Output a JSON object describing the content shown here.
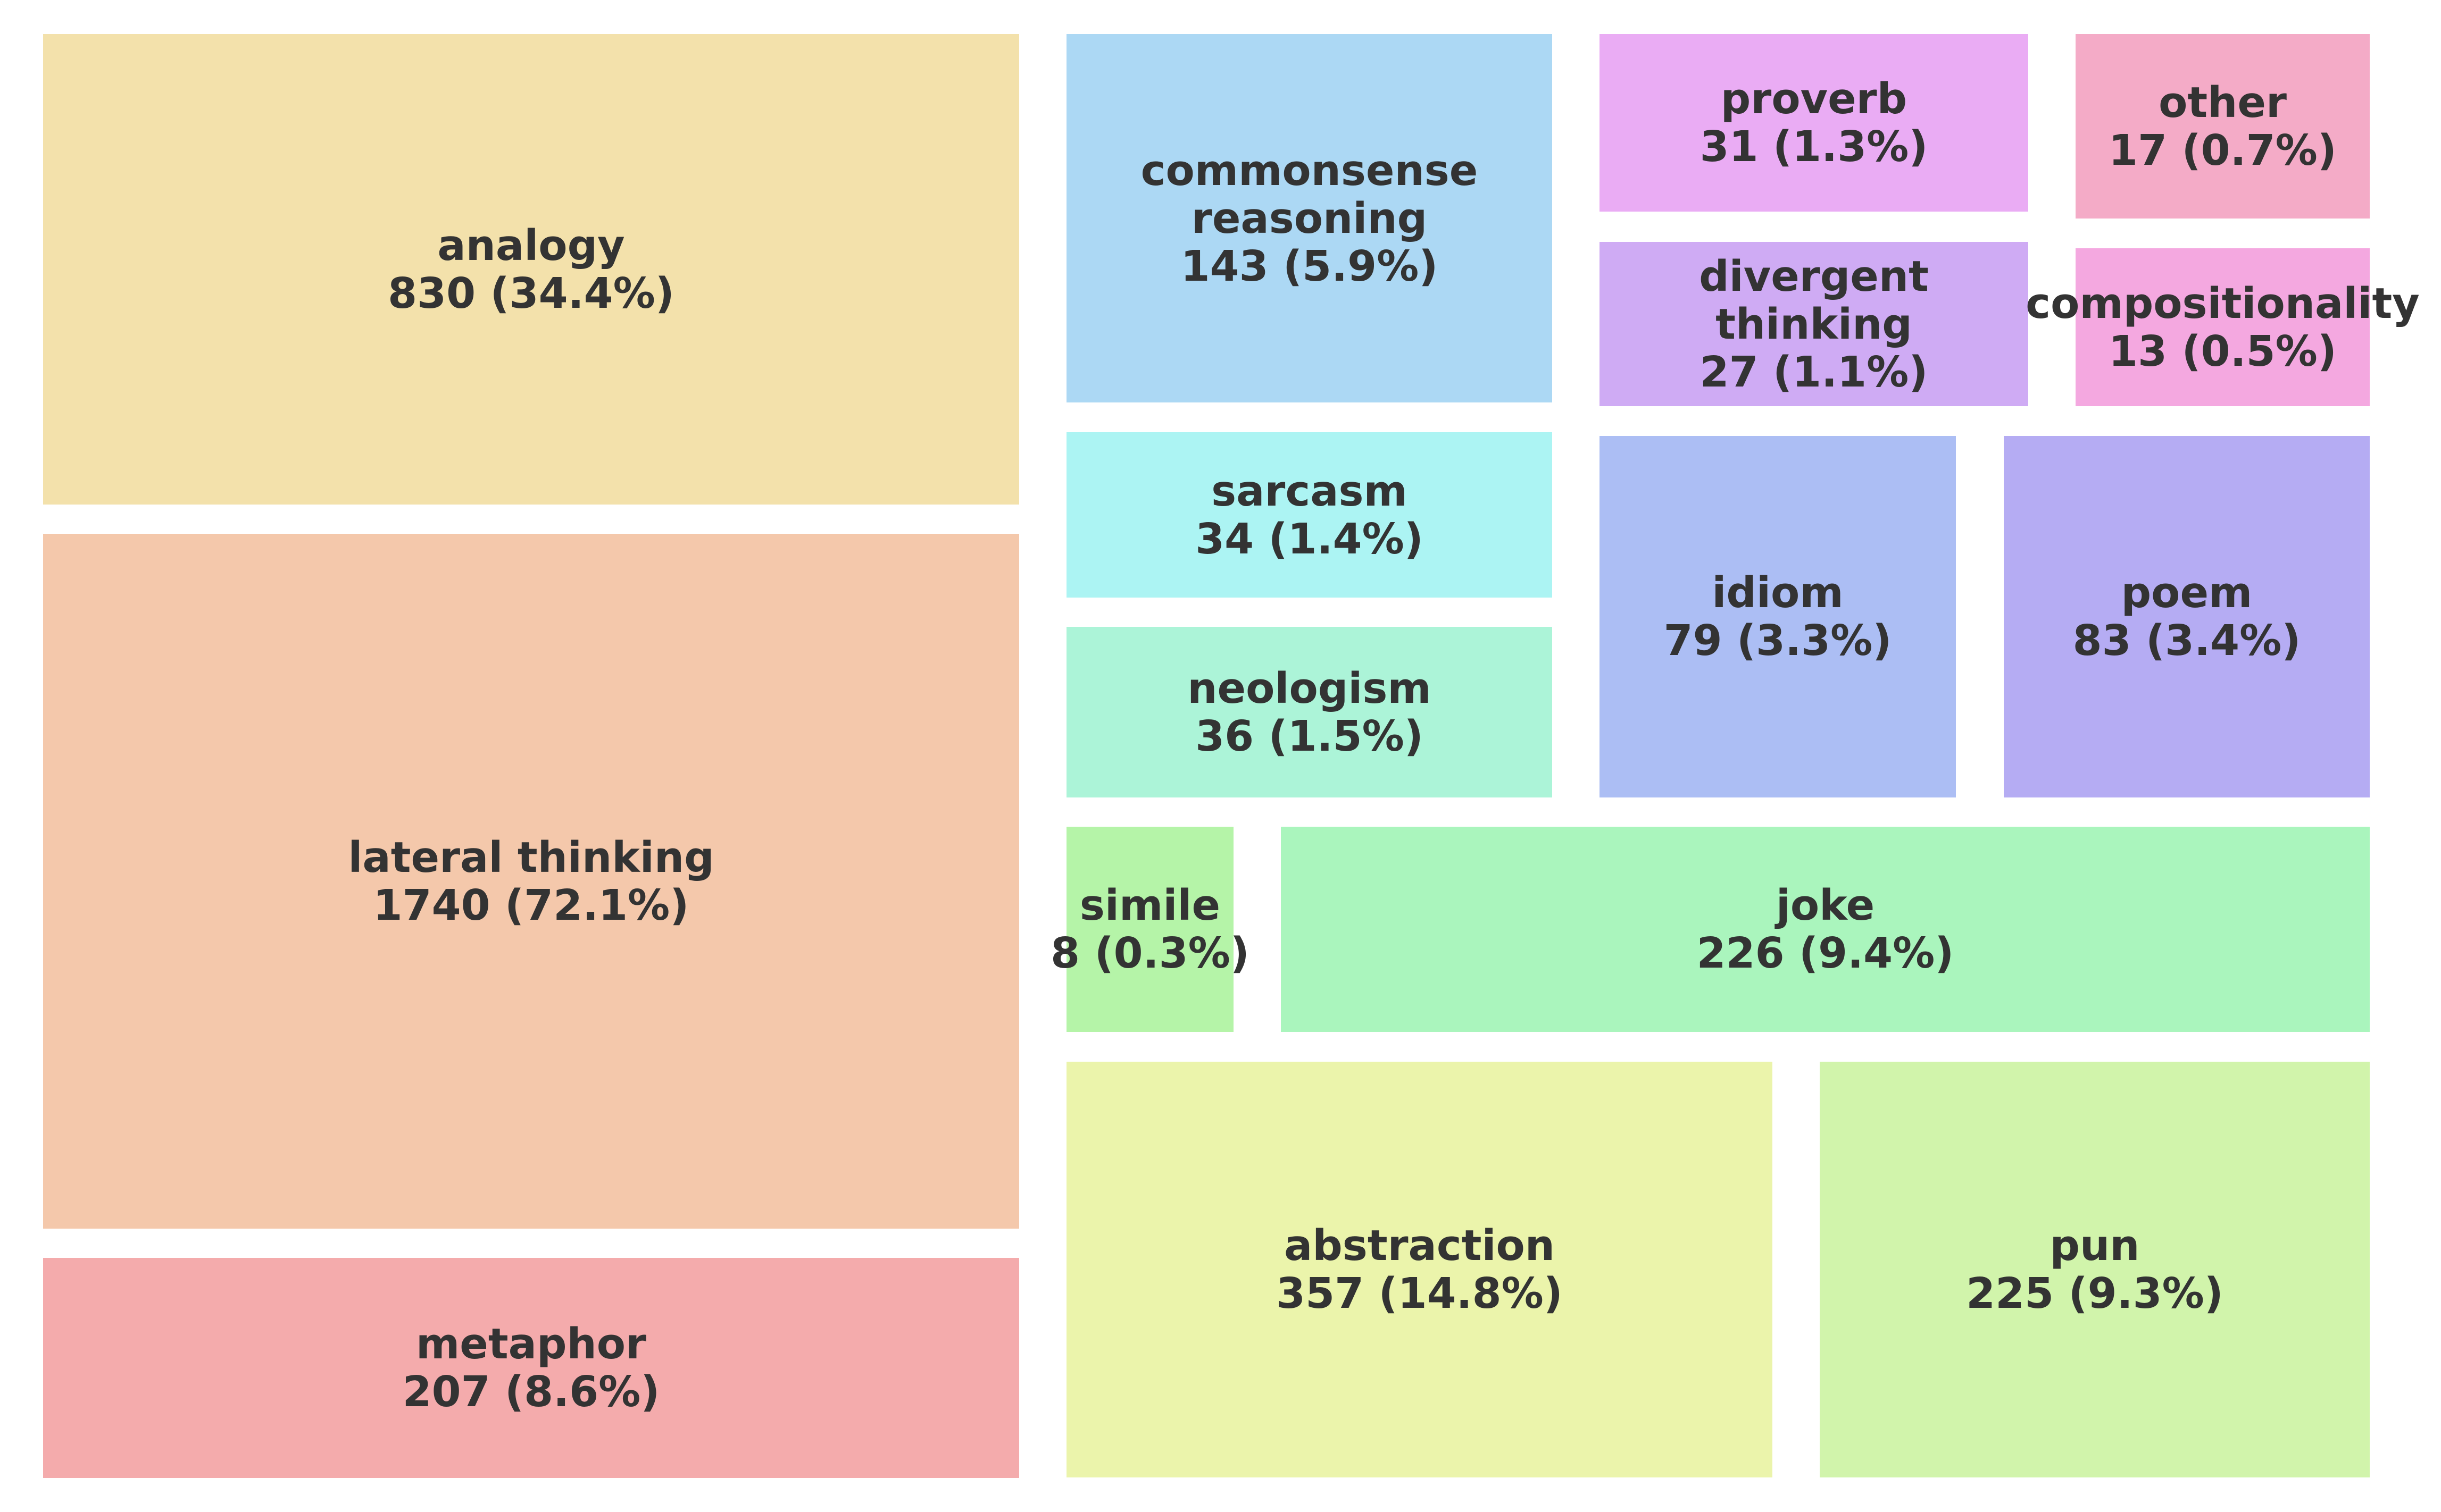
{
  "chart_data": {
    "type": "treemap",
    "title": "",
    "total_basis": "percent of 2413",
    "label_format": "name / count (percent%)",
    "text_color": "#333333",
    "items": [
      {
        "name": "analogy",
        "label_lines": [
          "analogy"
        ],
        "count": 830,
        "percent": 34.4,
        "value_text": "830 (34.4%)",
        "color": "#f3e1ab"
      },
      {
        "name": "lateral thinking",
        "label_lines": [
          "lateral thinking"
        ],
        "count": 1740,
        "percent": 72.1,
        "value_text": "1740 (72.1%)",
        "color": "#f4c8ab"
      },
      {
        "name": "metaphor",
        "label_lines": [
          "metaphor"
        ],
        "count": 207,
        "percent": 8.6,
        "value_text": "207 (8.6%)",
        "color": "#f4abac"
      },
      {
        "name": "commonsense reasoning",
        "label_lines": [
          "commonsense",
          "reasoning"
        ],
        "count": 143,
        "percent": 5.9,
        "value_text": "143 (5.9%)",
        "color": "#acd8f4"
      },
      {
        "name": "sarcasm",
        "label_lines": [
          "sarcasm"
        ],
        "count": 34,
        "percent": 1.4,
        "value_text": "34 (1.4%)",
        "color": "#acf4f3"
      },
      {
        "name": "neologism",
        "label_lines": [
          "neologism"
        ],
        "count": 36,
        "percent": 1.5,
        "value_text": "36 (1.5%)",
        "color": "#acf4d8"
      },
      {
        "name": "simile",
        "label_lines": [
          "simile"
        ],
        "count": 8,
        "percent": 0.3,
        "value_text": "8 (0.3%)",
        "color": "#b5f4a8"
      },
      {
        "name": "joke",
        "label_lines": [
          "joke"
        ],
        "count": 226,
        "percent": 9.4,
        "value_text": "226 (9.4%)",
        "color": "#aaf5bd"
      },
      {
        "name": "abstraction",
        "label_lines": [
          "abstraction"
        ],
        "count": 357,
        "percent": 14.8,
        "value_text": "357 (14.8%)",
        "color": "#ebf4ab"
      },
      {
        "name": "pun",
        "label_lines": [
          "pun"
        ],
        "count": 225,
        "percent": 9.3,
        "value_text": "225 (9.3%)",
        "color": "#d1f4ab"
      },
      {
        "name": "proverb",
        "label_lines": [
          "proverb"
        ],
        "count": 31,
        "percent": 1.3,
        "value_text": "31 (1.3%)",
        "color": "#eaacf4"
      },
      {
        "name": "divergent thinking",
        "label_lines": [
          "divergent",
          "thinking"
        ],
        "count": 27,
        "percent": 1.1,
        "value_text": "27 (1.1%)",
        "color": "#cfabf4"
      },
      {
        "name": "other",
        "label_lines": [
          "other"
        ],
        "count": 17,
        "percent": 0.7,
        "value_text": "17 (0.7%)",
        "color": "#f4abc7"
      },
      {
        "name": "compositionality",
        "label_lines": [
          "compositionality"
        ],
        "count": 13,
        "percent": 0.5,
        "value_text": "13 (0.5%)",
        "color": "#f4a8e0"
      },
      {
        "name": "idiom",
        "label_lines": [
          "idiom"
        ],
        "count": 79,
        "percent": 3.3,
        "value_text": "79 (3.3%)",
        "color": "#acbef4"
      },
      {
        "name": "poem",
        "label_lines": [
          "poem"
        ],
        "count": 83,
        "percent": 3.4,
        "value_text": "83 (3.4%)",
        "color": "#b5acf3"
      }
    ]
  }
}
